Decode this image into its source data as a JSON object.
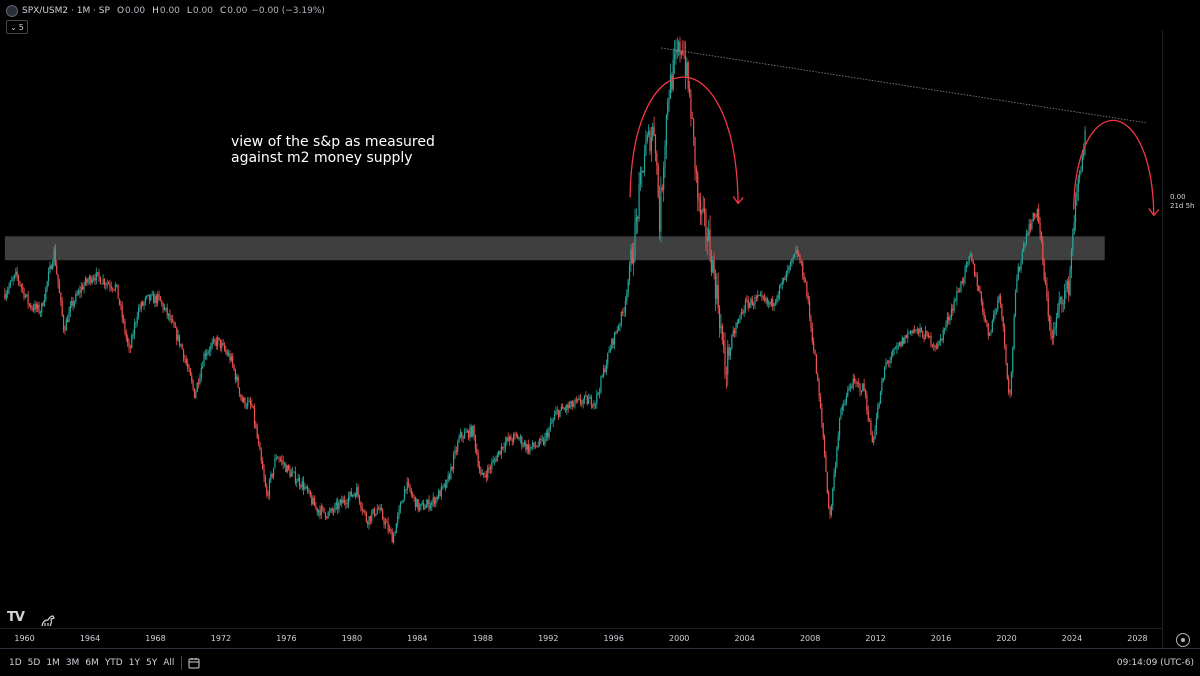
{
  "header": {
    "symbol": "SPX/USM2 · 1M · SP",
    "ohlc": [
      {
        "key": "O",
        "value": "0.00"
      },
      {
        "key": "H",
        "value": "0.00"
      },
      {
        "key": "L",
        "value": "0.00"
      },
      {
        "key": "C",
        "value": "0.00"
      }
    ],
    "change": "−0.00 (−3.19%)",
    "indicator_count": "5"
  },
  "annotation": "view of the s&p as measured\nagainst m2 money supply",
  "price_scale": {
    "last_value": "0.00",
    "countdown": "21d 5h"
  },
  "logo_text": "TV",
  "bottom_bar": {
    "ranges": [
      "1D",
      "5D",
      "1M",
      "3M",
      "6M",
      "YTD",
      "1Y",
      "5Y",
      "All"
    ],
    "clock": "09:14:09 (UTC-6)"
  },
  "colors": {
    "background": "#000000",
    "up_candle": "#26a69a",
    "down_candle": "#ef5350",
    "zone": "#4a4a4a",
    "arc": "#f23645",
    "trendline": "#8a8a8a",
    "text": "#d1d4dc"
  },
  "chart_data": {
    "type": "line",
    "title": "SPX/USM2 · 1M · SP",
    "subtitle": "view of the s&p as measured against m2 money supply",
    "xlabel": "",
    "ylabel": "",
    "x_ticks": [
      "1960",
      "1964",
      "1968",
      "1972",
      "1976",
      "1980",
      "1984",
      "1988",
      "1992",
      "1996",
      "2000",
      "2004",
      "2008",
      "2012",
      "2016",
      "2020",
      "2024",
      "2028"
    ],
    "xlim": [
      1958.5,
      2029.5
    ],
    "ylim": [
      0,
      100
    ],
    "grid": false,
    "legend": "none",
    "series": [
      {
        "x": [
          1958.8,
          1959.5,
          1960.3,
          1961.0,
          1961.8,
          1962.4,
          1962.9,
          1963.5,
          1964.2,
          1964.9,
          1965.6,
          1966.4,
          1966.9,
          1967.5,
          1968.2,
          1968.8,
          1969.6,
          1970.4,
          1971.0,
          1971.8,
          1972.6,
          1973.3,
          1973.9,
          1974.8,
          1975.4,
          1976.2,
          1977.0,
          1977.8,
          1978.6,
          1979.4,
          1980.3,
          1980.9,
          1981.6,
          1982.5,
          1983.3,
          1984.1,
          1984.9,
          1985.8,
          1986.6,
          1987.4,
          1987.9,
          1988.5,
          1989.3,
          1990.1,
          1990.8,
          1991.7,
          1992.5,
          1993.3,
          1994.1,
          1994.9,
          1995.8,
          1996.6,
          1997.3,
          1997.9,
          1998.5,
          1998.8,
          1999.3,
          1999.8,
          2000.2,
          2000.7,
          2001.2,
          2001.8,
          2002.4,
          2002.8,
          2003.3,
          2004.0,
          2004.8,
          2005.6,
          2006.4,
          2007.2,
          2007.7,
          2008.3,
          2008.8,
          2009.2,
          2009.8,
          2010.5,
          2011.3,
          2011.8,
          2012.6,
          2013.4,
          2014.2,
          2015.0,
          2015.8,
          2016.2,
          2017.0,
          2017.8,
          2018.2,
          2018.9,
          2019.6,
          2020.2,
          2020.6,
          2021.2,
          2021.9,
          2022.4,
          2022.8,
          2023.3,
          2023.8,
          2024.1,
          2024.5,
          2024.8
        ],
        "values": [
          56,
          59,
          54,
          53,
          63,
          50,
          54,
          57,
          59,
          58,
          57,
          46,
          53,
          55,
          55,
          52,
          47,
          39,
          46,
          48,
          45,
          38,
          37,
          22,
          29,
          26,
          24,
          20,
          19,
          21,
          23,
          18,
          20,
          15,
          24,
          20,
          21,
          24,
          32,
          33,
          25,
          27,
          31,
          32,
          30,
          31,
          36,
          37,
          38,
          38,
          47,
          53,
          66,
          80,
          84,
          68,
          89,
          95,
          98,
          87,
          70,
          65,
          54,
          43,
          49,
          54,
          55,
          54,
          58,
          63,
          58,
          45,
          32,
          18,
          35,
          41,
          40,
          31,
          44,
          47,
          50,
          49,
          47,
          50,
          56,
          62,
          58,
          49,
          56,
          38,
          58,
          66,
          70,
          56,
          48,
          55,
          57,
          68,
          77,
          82
        ]
      }
    ],
    "markers": [
      {
        "type": "zone",
        "from": 61.5,
        "to": 65.5,
        "x_from": 1958.8,
        "x_to": 2026.0
      },
      {
        "type": "trendline",
        "x": [
          1998.9,
          2028.5
        ],
        "y": [
          97,
          84.5
        ]
      },
      {
        "type": "arc",
        "x_from": 1997.0,
        "x_to": 2003.6,
        "peak": 96,
        "end": 71
      },
      {
        "type": "arc",
        "x_from": 2024.1,
        "x_to": 2029.0,
        "peak": 87,
        "end": 69
      }
    ]
  }
}
